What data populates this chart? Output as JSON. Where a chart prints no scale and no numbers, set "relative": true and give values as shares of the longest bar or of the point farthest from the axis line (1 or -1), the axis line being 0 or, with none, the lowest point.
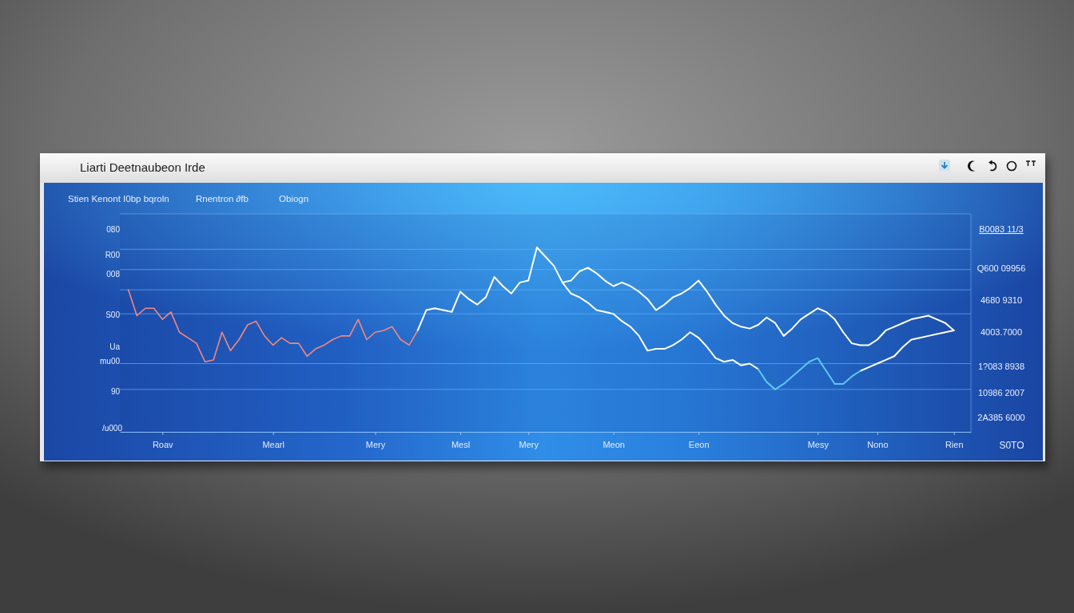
{
  "chart_data": {
    "type": "line",
    "title": "Liarti Deetnaubeon Irde",
    "annotations": [
      "Stien Kenont I0bp bqroln",
      "Rnentron ∂fb",
      "Obiogn",
      "080",
      "R00",
      "008",
      "S00",
      "Ua",
      "mu00",
      "90",
      "/u000",
      "B0083 11/3",
      "Q600 09956",
      "4680 9310",
      "4003.7000",
      "1?083 8938",
      "10986 2007",
      "2A385 6000",
      "S0TO"
    ],
    "relative": true,
    "ref_lines": [
      {
        "axis": "y",
        "value": 0.99,
        "color": "#5fb2f5"
      },
      {
        "axis": "y",
        "value": 0.88,
        "color": "#5fb2f5"
      },
      {
        "axis": "y",
        "value": 0.77,
        "color": "#5fb2f5"
      },
      {
        "axis": "y",
        "value": 0.64,
        "color": "#5fb2f5"
      },
      {
        "axis": "y",
        "value": 0.37,
        "color": "#5fb2f5"
      },
      {
        "axis": "y",
        "value": 0.23,
        "color": "#5fb2f5"
      }
    ],
    "categories": [
      null,
      null,
      null,
      null,
      null,
      "Roav",
      null,
      null,
      null,
      null,
      null,
      null,
      null,
      null,
      null,
      null,
      null,
      null,
      "Mearl",
      null,
      null,
      null,
      null,
      null,
      null,
      null,
      null,
      null,
      null,
      null,
      "Mery",
      null,
      null,
      null,
      null,
      null,
      null,
      null,
      null,
      null,
      "Mesl",
      null,
      null,
      null,
      null,
      null,
      null,
      null,
      "Mery",
      null,
      null,
      null,
      null,
      null,
      null,
      null,
      null,
      null,
      "Meon",
      null,
      null,
      null,
      null,
      null,
      null,
      null,
      null,
      null,
      "Eeon",
      null,
      null,
      null,
      null,
      null,
      null,
      null,
      null,
      null,
      null,
      null,
      null,
      null,
      "Mesy",
      null,
      null,
      null,
      null,
      null,
      null,
      "Nono",
      null,
      null,
      null,
      null,
      null,
      null,
      null,
      null,
      "Rien",
      null,
      null
    ],
    "series": [
      {
        "color": "#f4877d",
        "values": [
          null,
          0.77,
          0.63,
          0.67,
          0.67,
          0.61,
          0.65,
          0.54,
          0.51,
          0.48,
          0.38,
          0.39,
          0.54,
          0.44,
          0.5,
          0.58,
          0.6,
          0.52,
          0.47,
          0.51,
          0.48,
          0.48,
          0.41,
          0.45,
          0.47,
          0.5,
          0.52,
          0.52,
          0.61,
          0.5,
          0.54,
          0.55,
          0.57,
          0.5,
          0.47,
          0.55,
          null,
          null,
          null,
          null,
          null,
          null,
          null,
          null,
          null,
          null,
          null,
          null,
          null,
          null,
          null,
          null,
          null,
          null,
          null,
          null,
          null,
          null,
          null,
          null,
          null,
          null,
          null,
          null,
          null,
          null,
          null,
          null,
          null,
          null,
          null,
          null,
          null,
          null,
          null,
          null,
          null,
          null,
          null,
          null,
          null,
          null,
          null,
          null,
          null,
          null,
          null,
          null,
          null,
          null,
          null,
          null,
          null,
          null,
          null,
          null,
          null,
          null,
          null,
          null,
          null
        ]
      },
      {
        "color": "#ffffff",
        "values": [
          null,
          null,
          null,
          null,
          null,
          null,
          null,
          null,
          null,
          null,
          null,
          null,
          null,
          null,
          null,
          null,
          null,
          null,
          null,
          null,
          null,
          null,
          null,
          null,
          null,
          null,
          null,
          null,
          null,
          null,
          null,
          null,
          null,
          null,
          null,
          0.55,
          0.66,
          0.67,
          0.66,
          0.65,
          0.76,
          0.72,
          0.69,
          0.73,
          0.84,
          0.79,
          0.75,
          0.81,
          0.82,
          1.0,
          0.95,
          0.9,
          0.81,
          0.82,
          0.87,
          0.89,
          0.86,
          0.82,
          0.79,
          0.81,
          0.79,
          0.76,
          0.72,
          0.66,
          0.69,
          0.73,
          0.75,
          0.78,
          0.82,
          0.76,
          0.69,
          0.63,
          0.59,
          0.57,
          0.56,
          0.58,
          0.62,
          0.59,
          0.52,
          0.56,
          0.61,
          0.64,
          0.67,
          0.65,
          0.61,
          0.54,
          0.48,
          0.47,
          0.47,
          0.5,
          0.55,
          0.57,
          0.59,
          0.61,
          0.62,
          0.63,
          0.61,
          0.59,
          0.55,
          null,
          null
        ]
      },
      {
        "color": "#ffffff",
        "values": [
          null,
          null,
          null,
          null,
          null,
          null,
          null,
          null,
          null,
          null,
          null,
          null,
          null,
          null,
          null,
          null,
          null,
          null,
          null,
          null,
          null,
          null,
          null,
          null,
          null,
          null,
          null,
          null,
          null,
          null,
          null,
          null,
          null,
          null,
          null,
          null,
          null,
          null,
          null,
          null,
          null,
          null,
          null,
          null,
          null,
          null,
          null,
          null,
          null,
          null,
          null,
          null,
          0.81,
          0.75,
          0.73,
          0.7,
          0.66,
          0.65,
          0.64,
          0.6,
          0.57,
          0.52,
          0.44,
          0.45,
          0.45,
          0.47,
          0.5,
          0.54,
          0.51,
          0.46,
          0.4,
          0.38,
          0.39,
          0.36,
          0.37,
          0.34,
          null,
          null,
          null,
          null,
          null,
          null,
          null,
          null,
          null,
          null,
          null,
          0.33,
          0.35,
          0.37,
          0.39,
          0.41,
          0.46,
          0.5,
          0.51,
          0.52,
          0.53,
          0.54,
          0.55,
          null,
          null
        ]
      },
      {
        "color": "#5cc8f0",
        "values": [
          null,
          null,
          null,
          null,
          null,
          null,
          null,
          null,
          null,
          null,
          null,
          null,
          null,
          null,
          null,
          null,
          null,
          null,
          null,
          null,
          null,
          null,
          null,
          null,
          null,
          null,
          null,
          null,
          null,
          null,
          null,
          null,
          null,
          null,
          null,
          null,
          null,
          null,
          null,
          null,
          null,
          null,
          null,
          null,
          null,
          null,
          null,
          null,
          null,
          null,
          null,
          null,
          null,
          null,
          null,
          null,
          null,
          null,
          null,
          null,
          null,
          null,
          null,
          null,
          null,
          null,
          null,
          null,
          null,
          null,
          null,
          null,
          null,
          null,
          null,
          0.34,
          0.27,
          0.23,
          0.26,
          0.3,
          0.34,
          0.38,
          0.4,
          0.33,
          0.26,
          0.26,
          0.3,
          0.33,
          null,
          null,
          null,
          null,
          null,
          null,
          null,
          null,
          null,
          null,
          null,
          null,
          null
        ]
      }
    ]
  }
}
